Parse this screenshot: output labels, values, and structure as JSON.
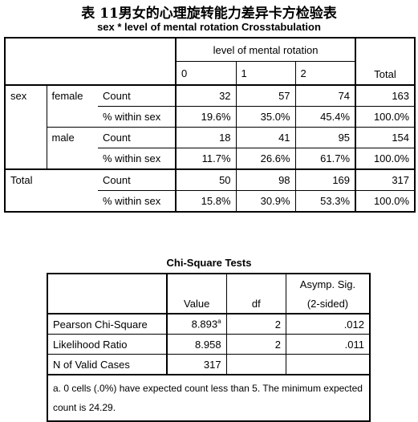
{
  "caption": "表 11男女的心理旋转能力差异卡方检验表",
  "crosstab": {
    "title": "sex * level of mental rotation Crosstabulation",
    "group_header": "level of mental rotation",
    "col_headers": [
      "0",
      "1",
      "2"
    ],
    "total_header": "Total",
    "row_var": "sex",
    "total_label": "Total",
    "rows": [
      {
        "group": "female",
        "stat": "Count",
        "values": [
          "32",
          "57",
          "74"
        ],
        "total": "163"
      },
      {
        "group": "",
        "stat": "% within sex",
        "values": [
          "19.6%",
          "35.0%",
          "45.4%"
        ],
        "total": "100.0%"
      },
      {
        "group": "male",
        "stat": "Count",
        "values": [
          "18",
          "41",
          "95"
        ],
        "total": "154"
      },
      {
        "group": "",
        "stat": "% within sex",
        "values": [
          "11.7%",
          "26.6%",
          "61.7%"
        ],
        "total": "100.0%"
      },
      {
        "group": "",
        "stat": "Count",
        "values": [
          "50",
          "98",
          "169"
        ],
        "total": "317"
      },
      {
        "group": "",
        "stat": "% within sex",
        "values": [
          "15.8%",
          "30.9%",
          "53.3%"
        ],
        "total": "100.0%"
      }
    ]
  },
  "chisq": {
    "title": "Chi-Square Tests",
    "headers": {
      "value": "Value",
      "df": "df",
      "sig_line1": "Asymp. Sig.",
      "sig_line2": "(2-sided)"
    },
    "rows": [
      {
        "label": "Pearson Chi-Square",
        "value": "8.893",
        "sup": "a",
        "df": "2",
        "sig": ".012"
      },
      {
        "label": "Likelihood Ratio",
        "value": "8.958",
        "sup": "",
        "df": "2",
        "sig": ".011"
      },
      {
        "label": "N of Valid Cases",
        "value": "317",
        "sup": "",
        "df": "",
        "sig": ""
      }
    ],
    "footnote": "a. 0 cells (.0%) have expected count less than 5. The minimum expected count is 24.29."
  }
}
